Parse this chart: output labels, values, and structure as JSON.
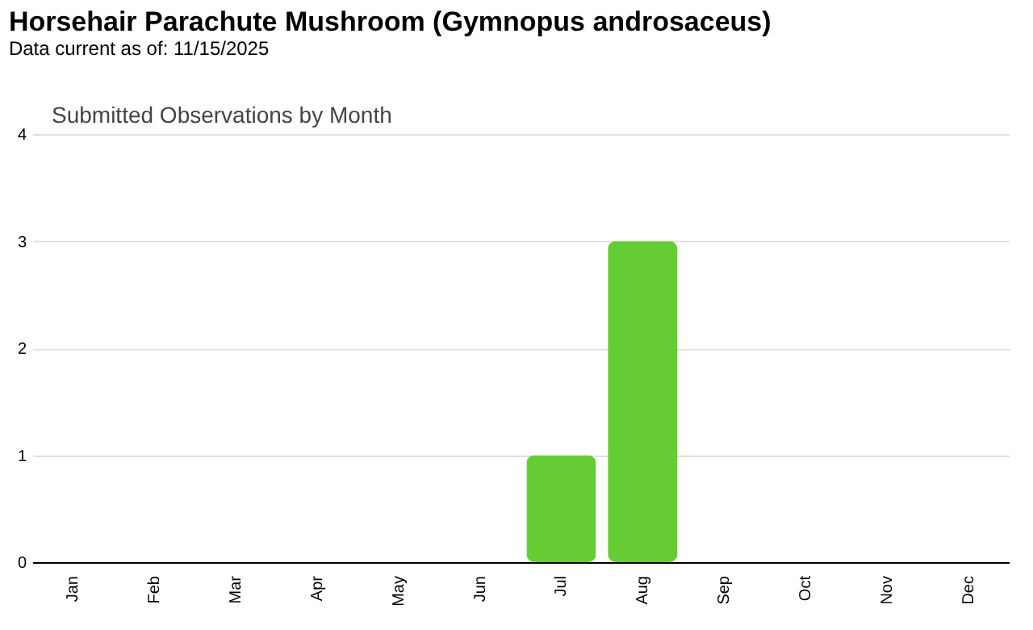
{
  "chart_data": {
    "type": "bar",
    "title": "Horsehair Parachute Mushroom   (Gymnopus androsaceus)",
    "subtitle": "Data current as of: 11/15/2025",
    "annotations": [
      "Submitted Observations by Month"
    ],
    "categories": [
      "Jan",
      "Feb",
      "Mar",
      "Apr",
      "May",
      "Jun",
      "Jul",
      "Aug",
      "Sep",
      "Oct",
      "Nov",
      "Dec"
    ],
    "values": [
      0,
      0,
      0,
      0,
      0,
      0,
      1,
      3,
      0,
      0,
      0,
      0
    ],
    "color": "#66cc33",
    "ylim": [
      0,
      4
    ],
    "yticks": [
      0,
      1,
      2,
      3,
      4
    ],
    "grid": "y"
  }
}
